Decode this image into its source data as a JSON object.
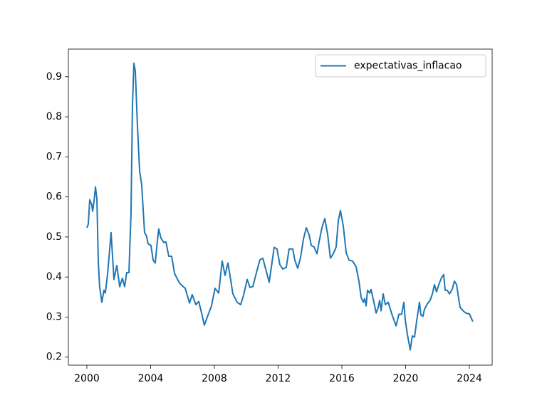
{
  "chart_data": {
    "type": "line",
    "x": [
      2000.0,
      2000.09,
      2000.18,
      2000.31,
      2000.36,
      2000.45,
      2000.54,
      2000.63,
      2000.72,
      2000.8,
      2000.94,
      2001.07,
      2001.16,
      2001.3,
      2001.52,
      2001.7,
      2001.88,
      2002.06,
      2002.23,
      2002.37,
      2002.5,
      2002.64,
      2002.77,
      2002.86,
      2002.95,
      2003.04,
      2003.17,
      2003.31,
      2003.44,
      2003.62,
      2003.75,
      2003.84,
      2004.02,
      2004.16,
      2004.29,
      2004.42,
      2004.51,
      2004.65,
      2004.83,
      2004.96,
      2005.14,
      2005.32,
      2005.5,
      2005.81,
      2005.99,
      2006.17,
      2006.44,
      2006.61,
      2006.84,
      2007.02,
      2007.2,
      2007.37,
      2007.6,
      2007.82,
      2008.04,
      2008.27,
      2008.49,
      2008.67,
      2008.85,
      2008.98,
      2009.16,
      2009.43,
      2009.65,
      2009.83,
      2010.06,
      2010.23,
      2010.41,
      2010.68,
      2010.86,
      2011.04,
      2011.22,
      2011.44,
      2011.58,
      2011.75,
      2011.93,
      2012.11,
      2012.29,
      2012.51,
      2012.69,
      2012.92,
      2013.05,
      2013.23,
      2013.41,
      2013.59,
      2013.77,
      2013.94,
      2014.08,
      2014.26,
      2014.44,
      2014.57,
      2014.75,
      2014.93,
      2015.11,
      2015.28,
      2015.46,
      2015.64,
      2015.78,
      2015.91,
      2016.09,
      2016.27,
      2016.45,
      2016.67,
      2016.89,
      2017.07,
      2017.21,
      2017.34,
      2017.43,
      2017.52,
      2017.61,
      2017.74,
      2017.83,
      2018.01,
      2018.15,
      2018.28,
      2018.37,
      2018.46,
      2018.59,
      2018.73,
      2018.91,
      2019.13,
      2019.4,
      2019.58,
      2019.75,
      2019.89,
      2019.98,
      2020.11,
      2020.29,
      2020.42,
      2020.56,
      2020.69,
      2020.87,
      2020.96,
      2021.09,
      2021.18,
      2021.36,
      2021.54,
      2021.68,
      2021.81,
      2021.94,
      2022.08,
      2022.26,
      2022.39,
      2022.48,
      2022.61,
      2022.75,
      2022.93,
      2023.06,
      2023.2,
      2023.33,
      2023.42,
      2023.6,
      2023.78,
      2024.0,
      2024.18,
      2024.22
    ],
    "series": [
      {
        "name": "expectativas_inflacao",
        "color": "#1f77b4",
        "values": [
          0.523,
          0.532,
          0.593,
          0.58,
          0.564,
          0.589,
          0.625,
          0.594,
          0.435,
          0.376,
          0.337,
          0.367,
          0.36,
          0.408,
          0.511,
          0.394,
          0.429,
          0.376,
          0.397,
          0.376,
          0.411,
          0.411,
          0.559,
          0.825,
          0.934,
          0.914,
          0.781,
          0.665,
          0.63,
          0.511,
          0.502,
          0.483,
          0.479,
          0.442,
          0.435,
          0.488,
          0.52,
          0.497,
          0.486,
          0.488,
          0.452,
          0.452,
          0.409,
          0.385,
          0.378,
          0.372,
          0.335,
          0.356,
          0.331,
          0.339,
          0.31,
          0.28,
          0.305,
          0.328,
          0.372,
          0.36,
          0.44,
          0.404,
          0.435,
          0.404,
          0.358,
          0.337,
          0.331,
          0.354,
          0.394,
          0.374,
          0.376,
          0.417,
          0.443,
          0.447,
          0.42,
          0.387,
          0.426,
          0.474,
          0.47,
          0.431,
          0.42,
          0.424,
          0.47,
          0.47,
          0.442,
          0.422,
          0.449,
          0.495,
          0.523,
          0.506,
          0.479,
          0.475,
          0.458,
          0.488,
          0.523,
          0.546,
          0.506,
          0.447,
          0.458,
          0.475,
          0.541,
          0.566,
          0.527,
          0.461,
          0.442,
          0.44,
          0.426,
          0.39,
          0.349,
          0.337,
          0.346,
          0.328,
          0.367,
          0.36,
          0.369,
          0.337,
          0.31,
          0.324,
          0.342,
          0.316,
          0.358,
          0.331,
          0.337,
          0.308,
          0.278,
          0.307,
          0.307,
          0.337,
          0.292,
          0.257,
          0.218,
          0.253,
          0.25,
          0.289,
          0.337,
          0.305,
          0.302,
          0.319,
          0.333,
          0.342,
          0.358,
          0.381,
          0.363,
          0.381,
          0.399,
          0.406,
          0.367,
          0.367,
          0.358,
          0.37,
          0.39,
          0.381,
          0.346,
          0.324,
          0.316,
          0.31,
          0.308,
          0.292,
          0.289
        ]
      }
    ],
    "xlim": [
      1998.84,
      2025.43
    ],
    "ylim": [
      0.18,
      0.969
    ],
    "xticks": [
      2000,
      2004,
      2008,
      2012,
      2016,
      2020,
      2024
    ],
    "yticks": [
      0.2,
      0.3,
      0.4,
      0.5,
      0.6,
      0.7,
      0.8,
      0.9
    ],
    "legend": "upper right"
  }
}
